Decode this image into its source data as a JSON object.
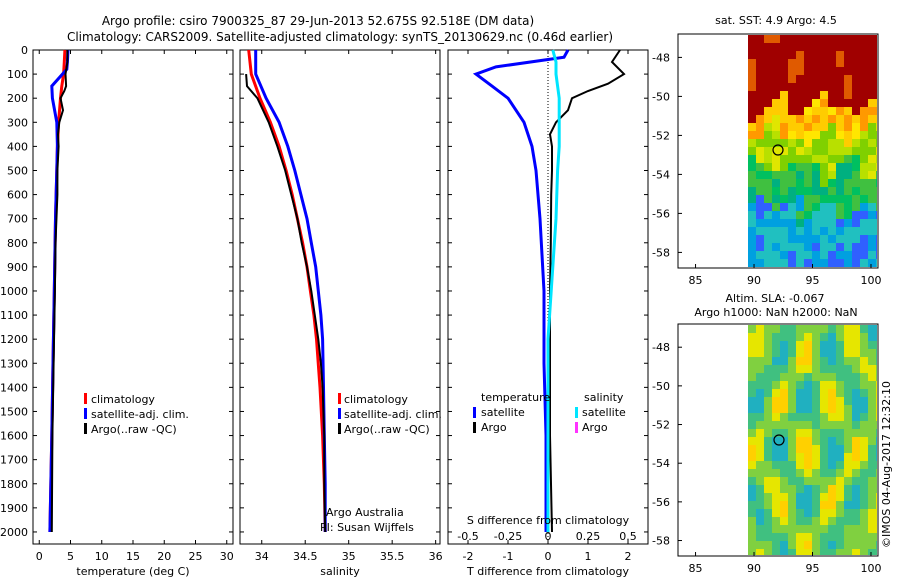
{
  "header": {
    "line1": "Argo profile: csiro 7900325_87 29-Jun-2013 52.675S 92.518E (DM data)",
    "line2": "Climatology: CARS2009. Satellite-adjusted climatology: synTS_20130629.nc (0.46d earlier)"
  },
  "colors": {
    "climatology": "#ff0000",
    "satellite": "#0000ff",
    "argo": "#000000",
    "sal_satellite": "#00e5ff",
    "sal_argo": "#ff33ff"
  },
  "depth_ticks": [
    "0",
    "100",
    "200",
    "300",
    "400",
    "500",
    "600",
    "700",
    "800",
    "900",
    "1000",
    "1100",
    "1200",
    "1300",
    "1400",
    "1500",
    "1600",
    "1700",
    "1800",
    "1900",
    "2000"
  ],
  "temperature_panel": {
    "xlabel": "temperature (deg C)",
    "xticks": [
      "0",
      "5",
      "10",
      "15",
      "20",
      "25",
      "30"
    ],
    "legend": [
      "climatology",
      "satellite-adj. clim.",
      "Argo(..raw -QC)"
    ]
  },
  "salinity_panel": {
    "xlabel": "salinity",
    "xticks": [
      "34",
      "34.5",
      "35",
      "35.5",
      "36"
    ],
    "legend": [
      "climatology",
      "satellite-adj. clim.",
      "Argo(..raw -QC)"
    ],
    "note1": "Argo Australia",
    "note2": "PI: Susan Wijffels"
  },
  "difference_panel": {
    "top_axis_label": "S difference from climatology",
    "top_ticks": [
      "-0.5",
      "-0.25",
      "0",
      "0.25",
      "0.5"
    ],
    "xlabel": "T difference from climatology",
    "xticks": [
      "-2",
      "-1",
      "0",
      "1",
      "2"
    ],
    "legend_temperature": "temperature",
    "legend_salinity": "salinity",
    "legend_items": [
      "satellite",
      "Argo",
      "satellite",
      "Argo"
    ]
  },
  "sst_map": {
    "title": "sat. SST: 4.9 Argo: 4.5",
    "yticks": [
      "-48",
      "-50",
      "-52",
      "-54",
      "-56",
      "-58"
    ],
    "xticks": [
      "85",
      "90",
      "95",
      "100"
    ]
  },
  "sla_map": {
    "title1": "Altim. SLA: -0.067",
    "title2": "Argo h1000: NaN h2000: NaN",
    "yticks": [
      "-48",
      "-50",
      "-52",
      "-54",
      "-56",
      "-58"
    ],
    "xticks": [
      "85",
      "90",
      "95",
      "100"
    ]
  },
  "watermark": "©IMOS 04-Aug-2017 12:32:10",
  "chart_data": [
    {
      "type": "line",
      "ylabel": "",
      "xlabel": "temperature (deg C)",
      "xlim": [
        -1,
        31
      ],
      "ylim": [
        2050,
        0
      ],
      "series": [
        {
          "name": "climatology",
          "depth": [
            0,
            50,
            100,
            150,
            200,
            300,
            400,
            500,
            700,
            1000,
            1300,
            1600,
            2000
          ],
          "values": [
            4.1,
            4.0,
            3.9,
            3.6,
            3.4,
            3.1,
            2.9,
            2.8,
            2.6,
            2.4,
            2.2,
            2.0,
            1.7
          ]
        },
        {
          "name": "satellite-adj. clim.",
          "depth": [
            0,
            50,
            80,
            150,
            200,
            300,
            400,
            500,
            700,
            1000,
            1300,
            1600,
            2000
          ],
          "values": [
            4.6,
            4.5,
            4.4,
            2.0,
            2.1,
            2.8,
            2.9,
            2.8,
            2.6,
            2.4,
            2.2,
            2.0,
            1.7
          ]
        },
        {
          "name": "Argo(..raw -QC)",
          "depth": [
            0,
            50,
            100,
            150,
            170,
            200,
            250,
            300,
            350,
            400,
            500,
            600,
            800,
            1000,
            1300,
            1600,
            2000
          ],
          "values": [
            4.5,
            4.5,
            4.2,
            4.3,
            4.0,
            3.4,
            3.8,
            3.2,
            3.0,
            3.1,
            2.9,
            2.9,
            2.6,
            2.5,
            2.3,
            2.1,
            2.0
          ]
        }
      ]
    },
    {
      "type": "line",
      "xlabel": "salinity",
      "xlim": [
        33.75,
        36.05
      ],
      "ylim": [
        2050,
        0
      ],
      "series": [
        {
          "name": "climatology",
          "depth": [
            0,
            100,
            200,
            300,
            400,
            500,
            600,
            700,
            800,
            900,
            1000,
            1100,
            1200,
            1400,
            1600,
            1800,
            2000
          ],
          "values": [
            33.85,
            33.88,
            33.98,
            34.1,
            34.2,
            34.28,
            34.35,
            34.41,
            34.47,
            34.52,
            34.56,
            34.6,
            34.63,
            34.67,
            34.7,
            34.72,
            34.73
          ]
        },
        {
          "name": "satellite-adj. clim.",
          "depth": [
            0,
            100,
            200,
            300,
            400,
            500,
            600,
            700,
            800,
            900,
            1000,
            1100,
            1200,
            1400,
            1600,
            1800,
            2000
          ],
          "values": [
            33.93,
            33.93,
            34.05,
            34.2,
            34.3,
            34.38,
            34.45,
            34.52,
            34.57,
            34.62,
            34.65,
            34.68,
            34.7,
            34.71,
            34.72,
            34.73,
            34.73
          ]
        },
        {
          "name": "Argo(..raw -QC)",
          "depth": [
            100,
            150,
            200,
            300,
            400,
            500,
            600,
            700,
            800,
            900,
            1000,
            1100,
            1200,
            1300,
            1400,
            1600,
            1800,
            2000
          ],
          "values": [
            33.82,
            33.83,
            33.95,
            34.08,
            34.18,
            34.27,
            34.34,
            34.41,
            34.46,
            34.52,
            34.57,
            34.61,
            34.65,
            34.68,
            34.7,
            34.72,
            34.72,
            34.73
          ]
        }
      ]
    },
    {
      "type": "line",
      "xlabel": "T difference from climatology",
      "top_axis": "S difference from climatology",
      "xlim": [
        -2.5,
        2.5
      ],
      "s_xlim": [
        -0.625,
        0.625
      ],
      "ylim": [
        2050,
        0
      ],
      "series": [
        {
          "name": "temperature satellite",
          "axis": "T",
          "depth": [
            0,
            30,
            70,
            100,
            150,
            200,
            300,
            400,
            500,
            700,
            1000,
            1300,
            1600,
            2000
          ],
          "values": [
            0.5,
            0.4,
            -1.3,
            -1.8,
            -1.4,
            -1.0,
            -0.6,
            -0.4,
            -0.3,
            -0.2,
            -0.1,
            -0.1,
            -0.05,
            -0.05
          ]
        },
        {
          "name": "temperature Argo",
          "axis": "T",
          "depth": [
            0,
            50,
            100,
            140,
            170,
            200,
            250,
            300,
            350,
            400,
            500,
            600,
            800,
            1000,
            1300,
            1600,
            2000
          ],
          "values": [
            1.8,
            1.6,
            1.9,
            1.5,
            1.0,
            0.6,
            0.5,
            0.2,
            0.05,
            0.1,
            0.1,
            0.08,
            0.07,
            0.05,
            0.05,
            0.05,
            0.1
          ]
        },
        {
          "name": "salinity satellite",
          "axis": "S",
          "depth": [
            0,
            50,
            100,
            200,
            300,
            400,
            500,
            700,
            900,
            1000,
            1200,
            1500,
            2000
          ],
          "values": [
            0.03,
            0.05,
            0.05,
            0.07,
            0.07,
            0.07,
            0.06,
            0.05,
            0.03,
            0.02,
            0.0,
            0.0,
            0.0
          ]
        }
      ]
    }
  ]
}
